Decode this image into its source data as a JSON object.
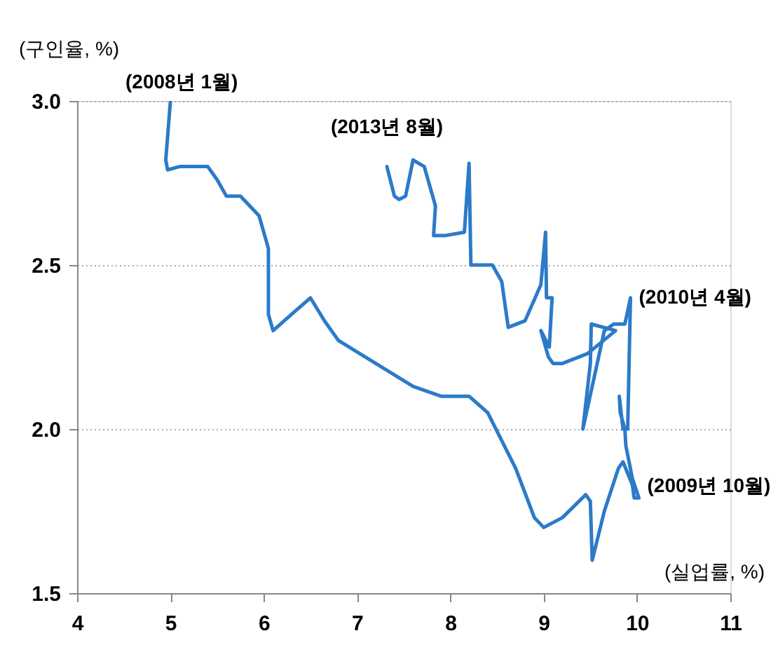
{
  "chart_data": {
    "type": "line",
    "xlabel": "(실업률, %)",
    "ylabel": "(구인율, %)",
    "series": [
      {
        "color": "#2b7bc8",
        "x": [
          5.0,
          4.95,
          4.97,
          5.1,
          5.4,
          5.5,
          5.6,
          5.75,
          5.95,
          6.05,
          6.05,
          6.1,
          6.3,
          6.5,
          6.65,
          6.8,
          7.2,
          7.6,
          7.9,
          8.2,
          8.4,
          8.7,
          8.9,
          9.0,
          9.2,
          9.45,
          9.5,
          9.52,
          9.65,
          9.8,
          9.85,
          9.95,
          9.97,
          10.02,
          9.95,
          9.88,
          9.87,
          9.82,
          9.81,
          9.85,
          9.9,
          9.93,
          9.87,
          9.75,
          9.65,
          9.42,
          9.5,
          9.51,
          9.77,
          9.47,
          9.2,
          9.1,
          9.05,
          8.97,
          9.06,
          9.09,
          9.03,
          9.02,
          8.97,
          8.8,
          8.62,
          8.55,
          8.45,
          8.3,
          8.22,
          8.2,
          8.15,
          7.95,
          7.82,
          7.84,
          7.72,
          7.6,
          7.52,
          7.45,
          7.4,
          7.32
        ],
        "values": [
          3.0,
          2.82,
          2.79,
          2.8,
          2.8,
          2.76,
          2.71,
          2.71,
          2.65,
          2.55,
          2.35,
          2.3,
          2.35,
          2.4,
          2.33,
          2.27,
          2.2,
          2.13,
          2.1,
          2.1,
          2.05,
          1.88,
          1.73,
          1.7,
          1.73,
          1.8,
          1.78,
          1.6,
          1.75,
          1.88,
          1.9,
          1.83,
          1.79,
          1.79,
          1.85,
          1.95,
          2.0,
          2.05,
          2.1,
          2.0,
          2.0,
          2.4,
          2.32,
          2.32,
          2.3,
          2.0,
          2.2,
          2.32,
          2.3,
          2.23,
          2.2,
          2.2,
          2.22,
          2.3,
          2.25,
          2.4,
          2.4,
          2.6,
          2.44,
          2.33,
          2.31,
          2.45,
          2.5,
          2.5,
          2.5,
          2.81,
          2.6,
          2.59,
          2.59,
          2.68,
          2.8,
          2.82,
          2.71,
          2.7,
          2.71,
          2.8
        ]
      }
    ],
    "xlim": [
      4,
      11
    ],
    "xticks": [
      4,
      5,
      6,
      7,
      8,
      9,
      10,
      11
    ],
    "ylim": [
      1.5,
      3.0
    ],
    "yticks": [
      {
        "value": 1.5,
        "label": "1.5"
      },
      {
        "value": 2.0,
        "label": "2.0"
      },
      {
        "value": 2.5,
        "label": "2.5"
      },
      {
        "value": 3.0,
        "label": "3.0"
      }
    ],
    "grid": "y",
    "marker": "none",
    "line_style": "solid",
    "annotations": [
      {
        "text": "(2008년 1월)",
        "x": 5.0,
        "y": 3.0
      },
      {
        "text": "(2013년 8월)",
        "x": 7.32,
        "y": 2.8
      },
      {
        "text": "(2010년 4월)",
        "x": 9.93,
        "y": 2.4
      },
      {
        "text": "(2009년 10월)",
        "x": 10.02,
        "y": 1.79
      }
    ]
  }
}
